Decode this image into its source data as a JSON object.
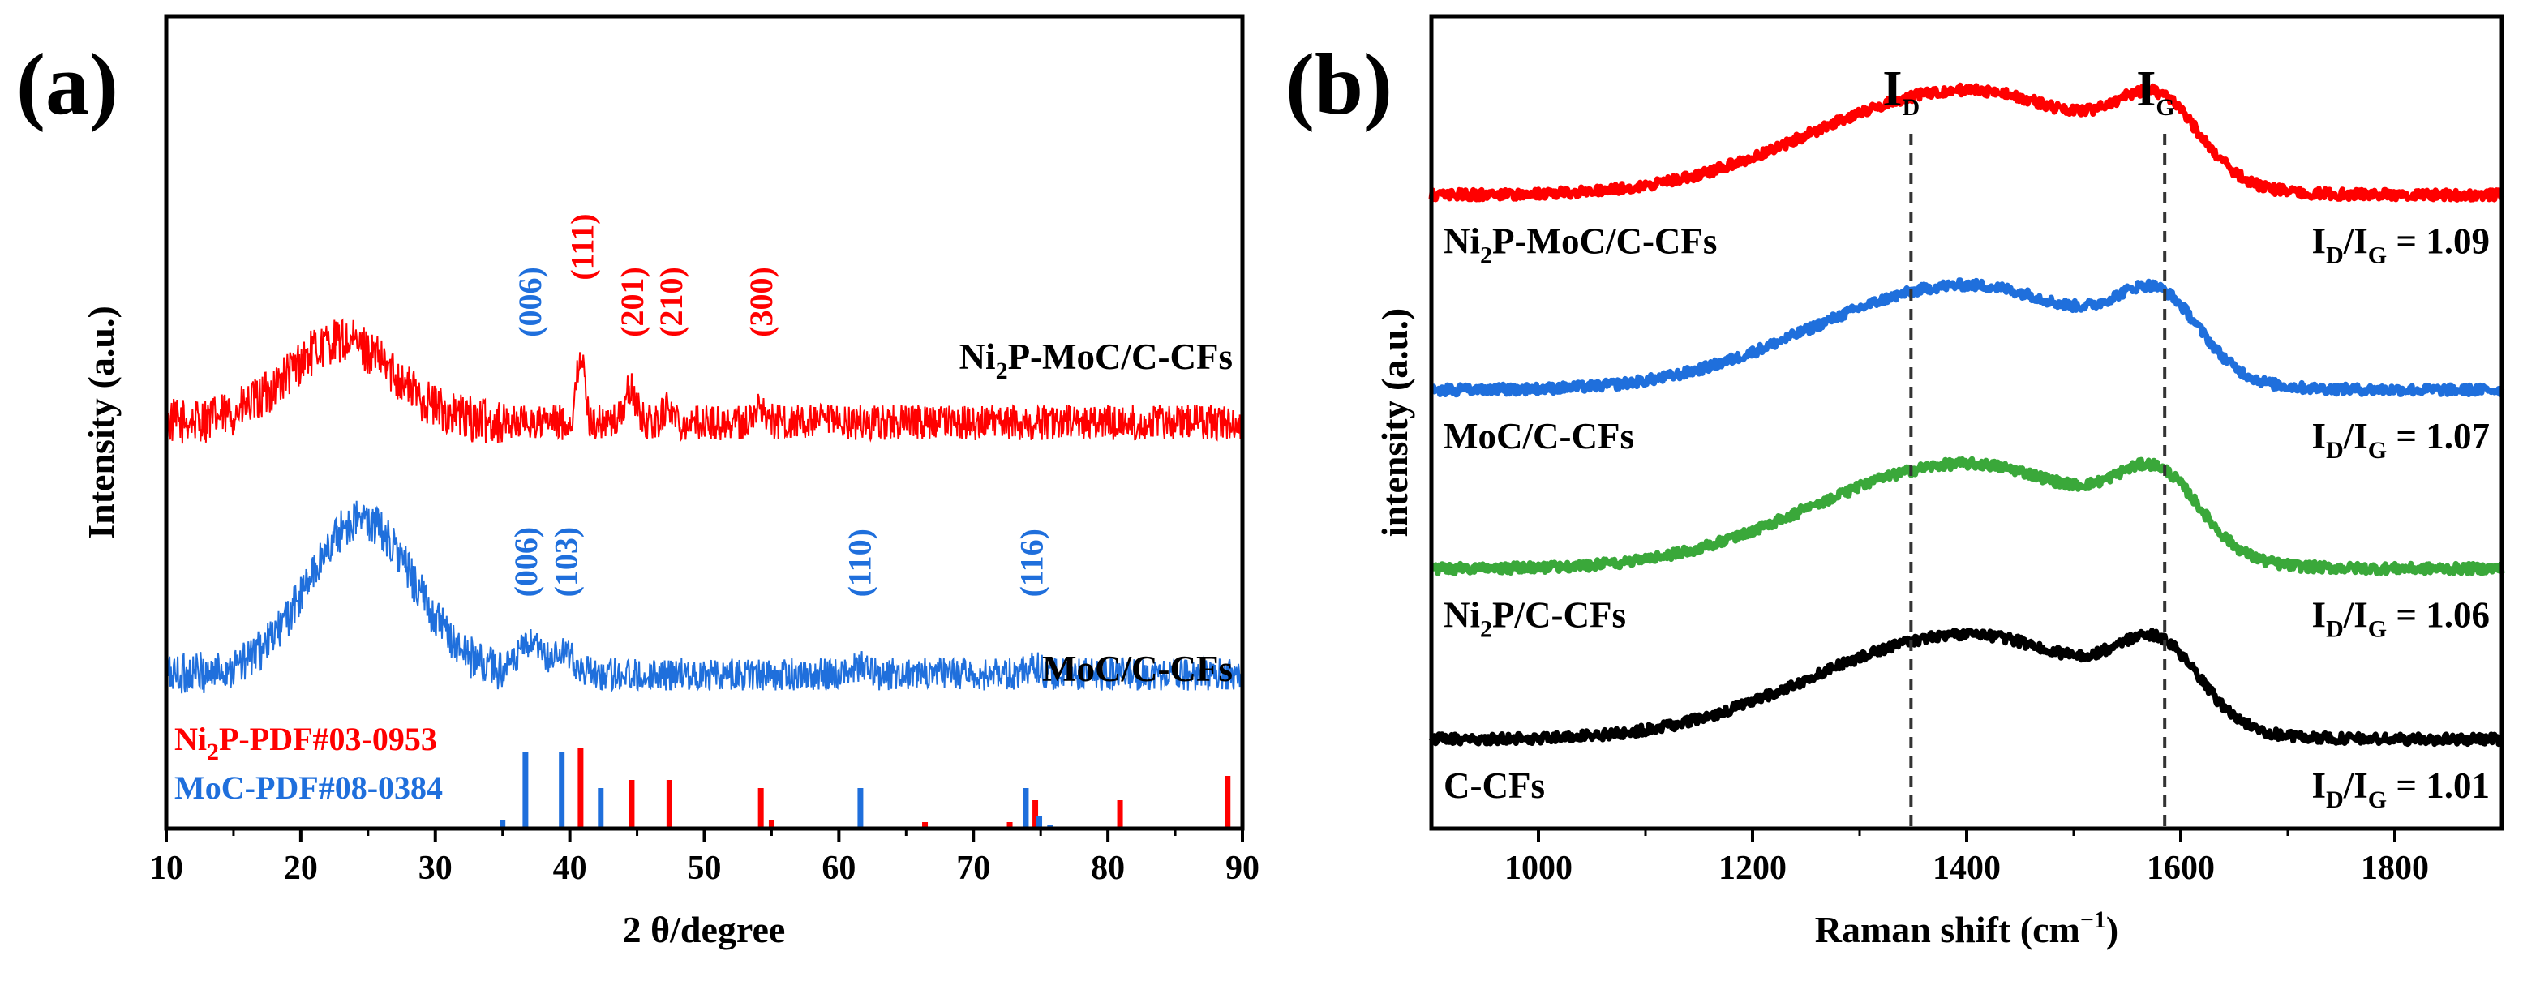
{
  "colors": {
    "red": "#ff0000",
    "blue": "#1f6fdc",
    "green": "#3aa83a",
    "black": "#000000"
  },
  "chart_data": [
    {
      "type": "line",
      "panel": "(a)",
      "xlabel": "2 θ/degree",
      "ylabel": "Intensity (a.u.)",
      "xlim": [
        10,
        90
      ],
      "xticks": [
        "10",
        "20",
        "30",
        "40",
        "50",
        "60",
        "70",
        "80",
        "90"
      ],
      "series": [
        {
          "name": "Ni2P-MoC/C-CFs",
          "label_main": "Ni",
          "label_sub": "2",
          "label_rest": "P-MoC/C-CFs",
          "color": "red",
          "baseline": 0.5,
          "features": [
            {
              "center": 23,
              "width": 5.5,
              "height": 0.1
            },
            {
              "center": 40.8,
              "width": 0.4,
              "height": 0.085
            },
            {
              "center": 44.5,
              "width": 0.6,
              "height": 0.04
            },
            {
              "center": 47.3,
              "width": 0.5,
              "height": 0.02
            },
            {
              "center": 54.2,
              "width": 0.5,
              "height": 0.02
            }
          ],
          "noise": 0.022
        },
        {
          "name": "MoC/C-CFs",
          "label_main": "MoC/C-CFs",
          "label_sub": "",
          "label_rest": "",
          "color": "blue",
          "baseline": 0.19,
          "features": [
            {
              "center": 24.5,
              "width": 5.5,
              "height": 0.19
            },
            {
              "center": 37,
              "width": 1.2,
              "height": 0.035
            },
            {
              "center": 39.5,
              "width": 1.2,
              "height": 0.025
            },
            {
              "center": 61.5,
              "width": 0.8,
              "height": 0.01
            },
            {
              "center": 74.5,
              "width": 0.8,
              "height": 0.01
            }
          ],
          "noise": 0.02
        }
      ],
      "peak_labels": [
        {
          "text": "(006)",
          "x": 37.0,
          "color": "blue",
          "series": "Ni2P-MoC/C-CFs"
        },
        {
          "text": "(111)",
          "x": 40.9,
          "color": "red",
          "series": "Ni2P-MoC/C-CFs"
        },
        {
          "text": "(201)",
          "x": 44.6,
          "color": "red",
          "series": "Ni2P-MoC/C-CFs"
        },
        {
          "text": "(210)",
          "x": 47.5,
          "color": "red",
          "series": "Ni2P-MoC/C-CFs"
        },
        {
          "text": "(300)",
          "x": 54.2,
          "color": "red",
          "series": "Ni2P-MoC/C-CFs"
        },
        {
          "text": "(006)",
          "x": 36.7,
          "color": "blue",
          "series": "MoC/C-CFs"
        },
        {
          "text": "(103)",
          "x": 39.7,
          "color": "blue",
          "series": "MoC/C-CFs"
        },
        {
          "text": "(110)",
          "x": 61.5,
          "color": "blue",
          "series": "MoC/C-CFs"
        },
        {
          "text": "(116)",
          "x": 74.3,
          "color": "blue",
          "series": "MoC/C-CFs"
        }
      ],
      "reference_patterns": [
        {
          "name": "Ni2P-PDF#03-0953",
          "label_main": "Ni",
          "label_sub": "2",
          "label_rest": "P-PDF#03-0953",
          "color": "red",
          "lines": [
            {
              "x": 40.8,
              "height": 1.0
            },
            {
              "x": 44.6,
              "height": 0.6
            },
            {
              "x": 47.4,
              "height": 0.6
            },
            {
              "x": 54.2,
              "height": 0.5
            },
            {
              "x": 55.0,
              "height": 0.1
            },
            {
              "x": 66.4,
              "height": 0.08
            },
            {
              "x": 72.7,
              "height": 0.08
            },
            {
              "x": 74.6,
              "height": 0.35
            },
            {
              "x": 80.9,
              "height": 0.35
            },
            {
              "x": 88.9,
              "height": 0.65
            }
          ]
        },
        {
          "name": "MoC-PDF#08-0384",
          "label_main": "MoC-PDF#08-0384",
          "label_sub": "",
          "label_rest": "",
          "color": "blue",
          "lines": [
            {
              "x": 35.0,
              "height": 0.1
            },
            {
              "x": 36.7,
              "height": 0.95
            },
            {
              "x": 39.4,
              "height": 0.95
            },
            {
              "x": 42.3,
              "height": 0.5
            },
            {
              "x": 61.6,
              "height": 0.5
            },
            {
              "x": 73.9,
              "height": 0.5
            },
            {
              "x": 74.9,
              "height": 0.15
            },
            {
              "x": 75.7,
              "height": 0.05
            }
          ]
        }
      ]
    },
    {
      "type": "line",
      "panel": "(b)",
      "xlabel": "Raman shift (cm−1)",
      "xlabel_main": "Raman shift (cm",
      "xlabel_sup": "−1",
      "xlabel_end": ")",
      "ylabel": "intensity (a.u.)",
      "xlim": [
        900,
        1900
      ],
      "xticks": [
        "1000",
        "1200",
        "1400",
        "1600",
        "1800"
      ],
      "peak_markers": [
        {
          "name": "ID",
          "main": "I",
          "sub": "D",
          "x": 1348
        },
        {
          "name": "IG",
          "main": "I",
          "sub": "G",
          "x": 1585
        }
      ],
      "series": [
        {
          "name": "Ni2P-MoC/C-CFs",
          "label_main": "Ni",
          "label_sub": "2",
          "label_rest": "P-MoC/C-CFs",
          "color": "red",
          "offset": 0.78,
          "ratio": "1.09"
        },
        {
          "name": "MoC/C-CFs",
          "label_main": "MoC/C-CFs",
          "label_sub": "",
          "label_rest": "",
          "color": "blue",
          "offset": 0.54,
          "ratio": "1.07"
        },
        {
          "name": "Ni2P/C-CFs",
          "label_main": "Ni",
          "label_sub": "2",
          "label_rest": "P/C-CFs",
          "color": "green",
          "offset": 0.32,
          "ratio": "1.06"
        },
        {
          "name": "C-CFs",
          "label_main": "C-CFs",
          "label_sub": "",
          "label_rest": "",
          "color": "black",
          "offset": 0.11,
          "ratio": "1.01"
        }
      ],
      "ratio_prefix_main": "I",
      "ratio_sub1": "D",
      "ratio_slash": "/I",
      "ratio_sub2": "G",
      "ratio_eq": " = "
    }
  ]
}
